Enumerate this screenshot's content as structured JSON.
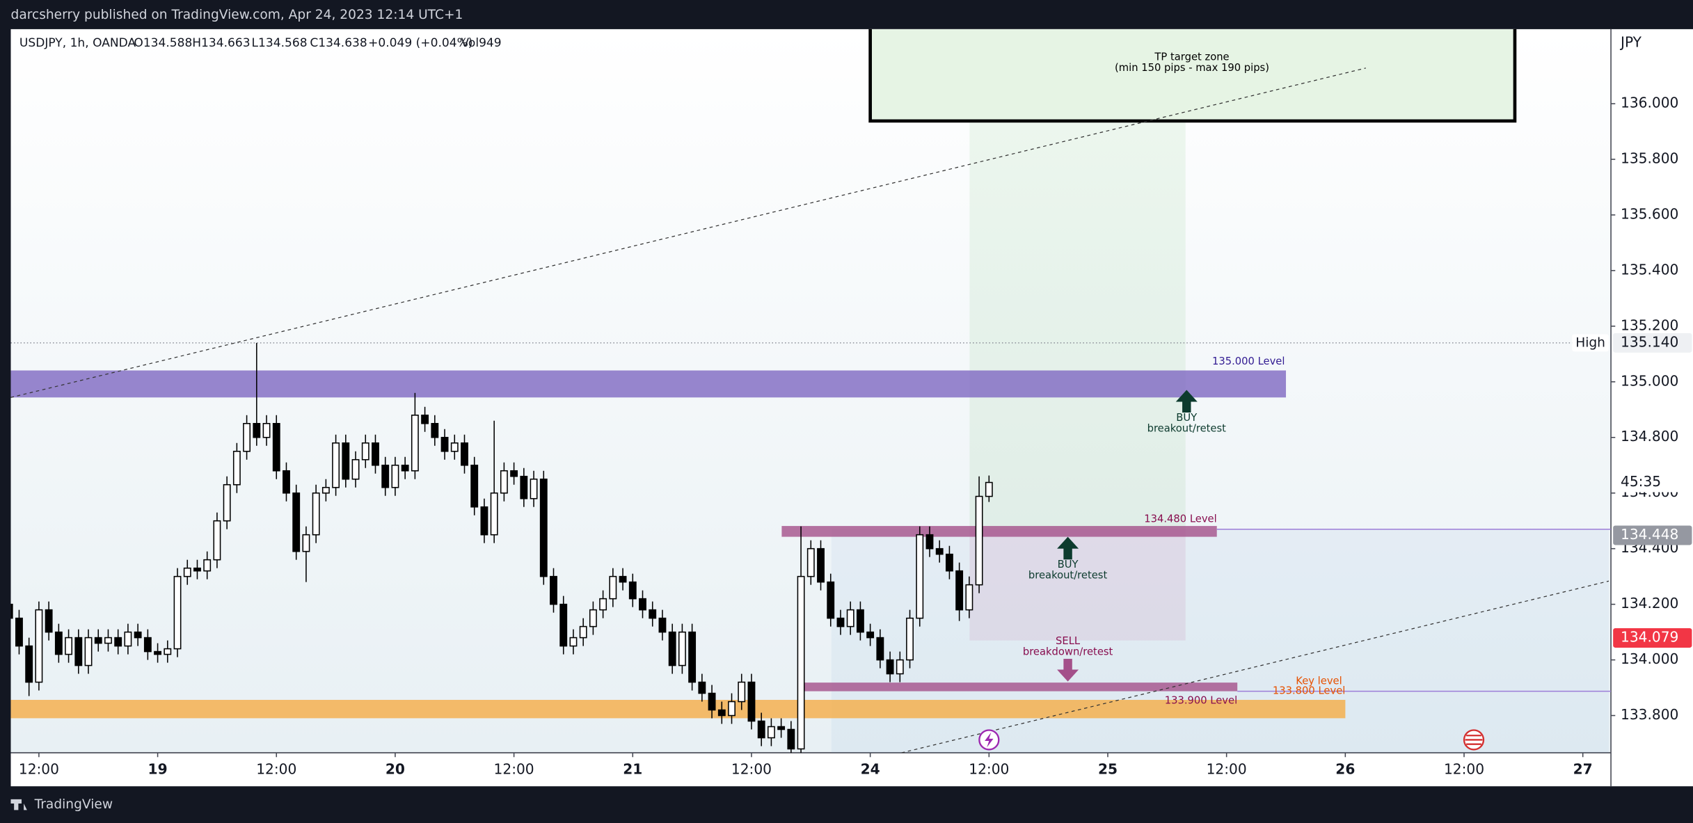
{
  "header": "darcsherry published on TradingView.com, Apr 24, 2023 12:14 UTC+1",
  "footer": "TradingView",
  "chart_data": {
    "type": "candlestick",
    "legend": [
      "USDJPY, 1h, OANDA",
      "O134.588",
      "H134.663",
      "L134.568",
      "C134.638",
      "+0.049 (+0.04%)",
      "Vol949"
    ],
    "y_unit": "JPY",
    "x": [
      -3,
      -2,
      -1,
      0,
      1,
      2,
      3,
      4,
      5,
      6,
      7,
      8,
      9,
      10,
      11,
      12,
      13,
      14,
      15,
      16,
      17,
      18,
      19,
      20,
      21,
      22,
      23,
      24,
      25,
      26,
      27,
      28,
      29,
      30,
      31,
      32,
      33,
      34,
      35,
      36,
      37,
      38,
      39,
      40,
      41,
      42,
      43,
      44,
      45,
      46,
      47,
      48,
      49,
      50,
      51,
      52,
      53,
      54,
      55,
      56,
      57,
      58,
      59,
      60,
      61,
      62,
      63,
      64,
      65,
      66,
      67,
      68,
      69,
      70,
      71,
      72,
      73,
      74,
      75,
      76,
      77,
      78,
      79,
      80,
      81,
      82,
      83,
      84,
      85,
      86,
      87,
      88,
      89,
      90,
      91,
      92,
      93,
      94,
      95,
      96
    ],
    "open": [
      134.2,
      134.15,
      134.05,
      133.92,
      134.18,
      134.1,
      134.02,
      134.08,
      133.98,
      134.08,
      134.06,
      134.08,
      134.05,
      134.1,
      134.08,
      134.03,
      134.02,
      134.04,
      134.3,
      134.33,
      134.32,
      134.36,
      134.5,
      134.63,
      134.75,
      134.85,
      134.8,
      134.85,
      134.68,
      134.6,
      134.39,
      134.45,
      134.6,
      134.62,
      134.78,
      134.65,
      134.72,
      134.78,
      134.7,
      134.62,
      134.7,
      134.68,
      134.88,
      134.85,
      134.8,
      134.75,
      134.78,
      134.7,
      134.55,
      134.45,
      134.6,
      134.68,
      134.66,
      134.58,
      134.65,
      134.3,
      134.2,
      134.05,
      134.08,
      134.12,
      134.18,
      134.22,
      134.3,
      134.28,
      134.22,
      134.18,
      134.15,
      134.1,
      133.98,
      134.1,
      133.92,
      133.88,
      133.82,
      133.8,
      133.85,
      133.92,
      133.78,
      133.72,
      133.76,
      133.75,
      133.68,
      134.3,
      134.4,
      134.28,
      134.15,
      134.12,
      134.18,
      134.1,
      134.08,
      134.0,
      133.95,
      134.0,
      134.15,
      134.45,
      134.4,
      134.38,
      134.32,
      134.18,
      134.27,
      134.588
    ],
    "high": [
      134.23,
      134.18,
      134.08,
      134.21,
      134.21,
      134.13,
      134.11,
      134.11,
      134.11,
      134.11,
      134.11,
      134.11,
      134.13,
      134.13,
      134.11,
      134.06,
      134.07,
      134.33,
      134.36,
      134.36,
      134.39,
      134.53,
      134.66,
      134.78,
      134.88,
      135.14,
      134.88,
      134.88,
      134.71,
      134.63,
      134.48,
      134.63,
      134.65,
      134.81,
      134.81,
      134.75,
      134.81,
      134.81,
      134.73,
      134.73,
      134.73,
      134.96,
      134.91,
      134.88,
      134.83,
      134.81,
      134.81,
      134.73,
      134.58,
      134.86,
      134.71,
      134.71,
      134.69,
      134.68,
      134.68,
      134.33,
      134.23,
      134.11,
      134.15,
      134.21,
      134.25,
      134.33,
      134.33,
      134.31,
      134.25,
      134.21,
      134.18,
      134.13,
      134.13,
      134.13,
      133.95,
      133.91,
      133.85,
      133.88,
      133.95,
      133.95,
      133.81,
      133.79,
      133.79,
      133.78,
      134.48,
      134.43,
      134.43,
      134.31,
      134.18,
      134.21,
      134.21,
      134.13,
      134.11,
      134.03,
      134.03,
      134.18,
      134.48,
      134.48,
      134.43,
      134.41,
      134.35,
      134.3,
      134.66,
      134.663
    ],
    "low": [
      134.12,
      134.02,
      133.87,
      133.89,
      134.07,
      133.99,
      133.99,
      133.95,
      133.95,
      134.03,
      134.03,
      134.02,
      134.02,
      134.05,
      134.0,
      133.99,
      133.99,
      134.01,
      134.27,
      134.29,
      134.29,
      134.33,
      134.47,
      134.6,
      134.72,
      134.77,
      134.77,
      134.65,
      134.57,
      134.36,
      134.28,
      134.42,
      134.57,
      134.59,
      134.62,
      134.62,
      134.69,
      134.67,
      134.59,
      134.59,
      134.65,
      134.65,
      134.82,
      134.77,
      134.72,
      134.72,
      134.67,
      134.52,
      134.42,
      134.42,
      134.57,
      134.63,
      134.55,
      134.55,
      134.27,
      134.17,
      134.02,
      134.02,
      134.05,
      134.09,
      134.15,
      134.19,
      134.25,
      134.19,
      134.15,
      134.12,
      134.07,
      133.95,
      133.95,
      133.89,
      133.85,
      133.79,
      133.77,
      133.77,
      133.82,
      133.75,
      133.69,
      133.69,
      133.72,
      133.65,
      133.66,
      134.27,
      134.25,
      134.12,
      134.09,
      134.09,
      134.07,
      134.05,
      133.97,
      133.92,
      133.92,
      133.97,
      134.12,
      134.37,
      134.35,
      134.29,
      134.14,
      134.15,
      134.24,
      134.568
    ],
    "close": [
      134.15,
      134.05,
      133.92,
      134.18,
      134.1,
      134.02,
      134.08,
      133.98,
      134.08,
      134.06,
      134.08,
      134.05,
      134.1,
      134.08,
      134.03,
      134.02,
      134.04,
      134.3,
      134.33,
      134.32,
      134.36,
      134.5,
      134.63,
      134.75,
      134.85,
      134.8,
      134.85,
      134.68,
      134.6,
      134.39,
      134.45,
      134.6,
      134.62,
      134.78,
      134.65,
      134.72,
      134.78,
      134.7,
      134.62,
      134.7,
      134.68,
      134.88,
      134.85,
      134.8,
      134.75,
      134.78,
      134.7,
      134.55,
      134.45,
      134.6,
      134.68,
      134.66,
      134.58,
      134.65,
      134.3,
      134.2,
      134.05,
      134.08,
      134.12,
      134.18,
      134.22,
      134.3,
      134.28,
      134.22,
      134.18,
      134.15,
      134.1,
      133.98,
      134.1,
      133.92,
      133.88,
      133.82,
      133.8,
      133.85,
      133.92,
      133.78,
      133.72,
      133.76,
      133.75,
      133.68,
      134.3,
      134.4,
      134.28,
      134.15,
      134.12,
      134.18,
      134.1,
      134.08,
      134.0,
      133.95,
      134.0,
      134.15,
      134.45,
      134.4,
      134.38,
      134.32,
      134.18,
      134.27,
      134.588,
      134.638
    ],
    "up_color": "#ffffff",
    "down_color": "#000000",
    "xlim": [
      -2.84,
      158.84
    ],
    "xticks": [
      {
        "value": 0,
        "label": "12:00"
      },
      {
        "value": 12,
        "label": "19"
      },
      {
        "value": 24,
        "label": "12:00"
      },
      {
        "value": 36,
        "label": "20"
      },
      {
        "value": 48,
        "label": "12:00"
      },
      {
        "value": 60,
        "label": "21"
      },
      {
        "value": 72,
        "label": "12:00"
      },
      {
        "value": 84,
        "label": "24"
      },
      {
        "value": 96,
        "label": "12:00"
      },
      {
        "value": 108,
        "label": "25"
      },
      {
        "value": 120,
        "label": "12:00"
      },
      {
        "value": 132,
        "label": "26"
      },
      {
        "value": 144,
        "label": "12:00"
      },
      {
        "value": 156,
        "label": "27"
      }
    ],
    "ylim": [
      133.666,
      136.268
    ],
    "yticks": [
      {
        "value": 133.8,
        "label": "133.800"
      },
      {
        "value": 134,
        "label": "134.000"
      },
      {
        "value": 134.2,
        "label": "134.200"
      },
      {
        "value": 134.4,
        "label": "134.400"
      },
      {
        "value": 134.6,
        "label": "134.600"
      },
      {
        "value": 134.8,
        "label": "134.800"
      },
      {
        "value": 135,
        "label": "135.000"
      },
      {
        "value": 135.2,
        "label": "135.200"
      },
      {
        "value": 135.4,
        "label": "135.400"
      },
      {
        "value": 135.6,
        "label": "135.600"
      },
      {
        "value": 135.8,
        "label": "135.800"
      },
      {
        "value": 136,
        "label": "136.000"
      }
    ],
    "high_marker": {
      "name": "High",
      "value": 135.14,
      "label": "135.140"
    },
    "price_badges": [
      {
        "value": 134.448,
        "label": "134.448",
        "color": "#9598a1"
      },
      {
        "value": 134.079,
        "label": "134.079",
        "color": "#f23645"
      }
    ],
    "countdown": "45:35",
    "annotations": {
      "tp_zone": [
        "TP target zone",
        "(min 150 pips - max 190 pips)"
      ],
      "level_135": "135.000 Level",
      "buy_1": [
        "BUY",
        "breakout/retest"
      ],
      "level_134480": "134.480 Level",
      "buy_2": [
        "BUY",
        "breakout/retest"
      ],
      "sell": [
        "SELL",
        "breakdown/retest"
      ],
      "key_level": [
        "Key level",
        "133.800 Level"
      ],
      "level_133900": "133.900 Level"
    }
  }
}
